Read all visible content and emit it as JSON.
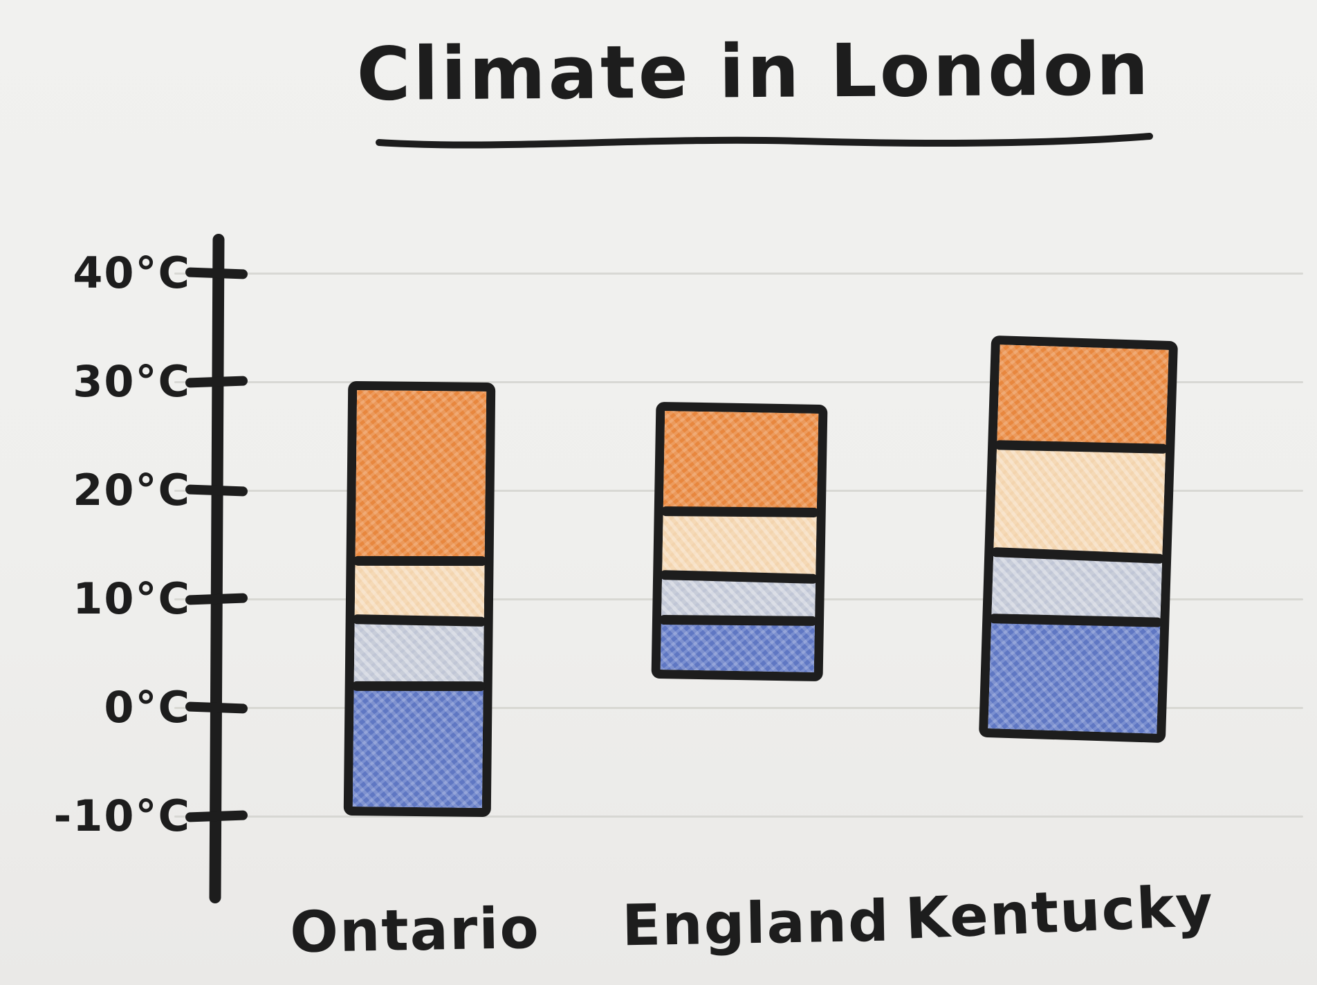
{
  "title": {
    "text": "Climate in London"
  },
  "colors": {
    "ink": "#1d1d1d",
    "paper": "#efefed",
    "gridline": "#d3d3cf",
    "hot_orange": "#e8873e",
    "light_orange": "#f5d9b6",
    "light_blue": "#c8cdd9",
    "cold_blue": "#5f77c3"
  },
  "axis": {
    "unit": "°C",
    "tick_labels": [
      "40°C",
      "30°C",
      "20°C",
      "10°C",
      "0°C",
      "-10°C"
    ]
  },
  "chart_data": {
    "type": "bar",
    "subtype": "hand-drawn floating stacked temperature-range bars",
    "title": "Climate in London",
    "categories": [
      "Ontario",
      "England",
      "Kentucky"
    ],
    "unit": "°C",
    "yticks": [
      40,
      30,
      20,
      10,
      0,
      -10
    ],
    "ylim": [
      -10,
      40
    ],
    "grid": "faint horizontal paper lines at each tick",
    "legend": "none",
    "bands_top_to_bottom": [
      "hot",
      "warm",
      "cool",
      "cold"
    ],
    "band_colors": {
      "hot": "#e8873e",
      "warm": "#f5d9b6",
      "cool": "#c8cdd9",
      "cold": "#5f77c3"
    },
    "series": [
      {
        "name": "Ontario",
        "segment_bounds_c": [
          30,
          13.5,
          8,
          2,
          -10
        ]
      },
      {
        "name": "England",
        "segment_bounds_c": [
          28,
          18,
          12,
          8,
          2.5
        ]
      },
      {
        "name": "Kentucky",
        "segment_bounds_c": [
          34,
          24,
          14,
          8,
          -3
        ]
      }
    ]
  }
}
